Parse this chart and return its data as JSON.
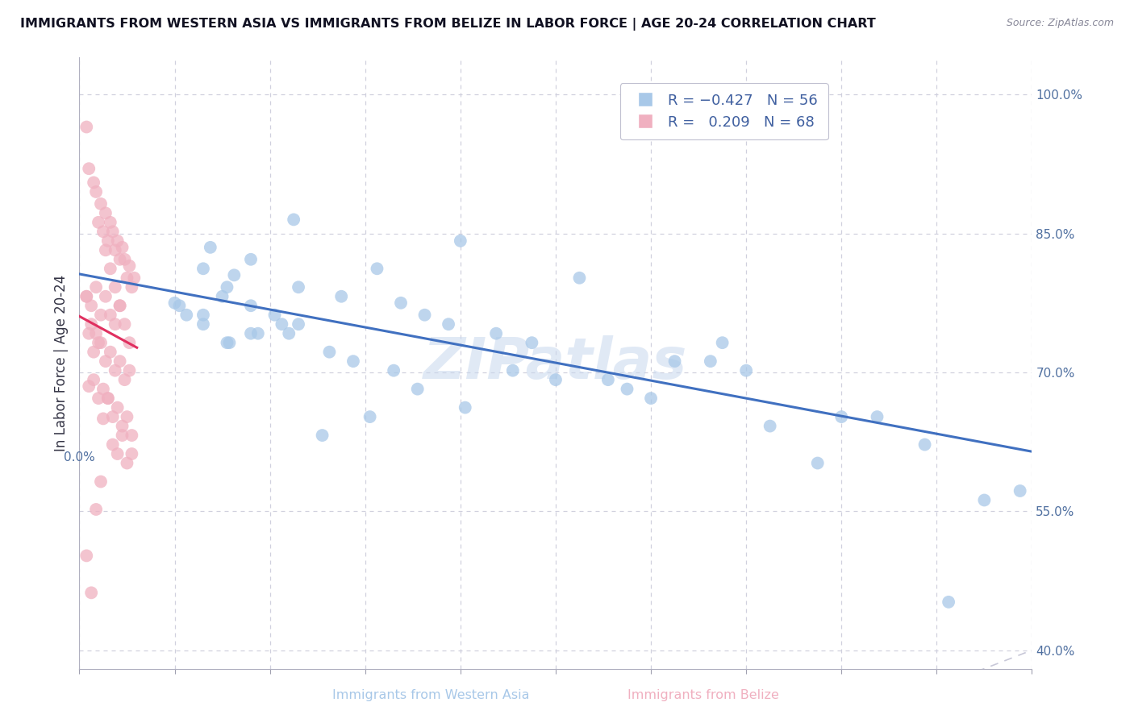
{
  "title": "IMMIGRANTS FROM WESTERN ASIA VS IMMIGRANTS FROM BELIZE IN LABOR FORCE | AGE 20-24 CORRELATION CHART",
  "source": "Source: ZipAtlas.com",
  "ylabel": "In Labor Force | Age 20-24",
  "right_yticks": [
    1.0,
    0.85,
    0.7,
    0.55,
    0.4
  ],
  "right_yticklabels": [
    "100.0%",
    "85.0%",
    "70.0%",
    "55.0%",
    "40.0%"
  ],
  "xlim": [
    0.0,
    0.4
  ],
  "ylim": [
    0.38,
    1.04
  ],
  "blue_color": "#a8c8e8",
  "pink_color": "#f0b0c0",
  "blue_line_color": "#4070c0",
  "pink_line_color": "#e03060",
  "diag_color": "#c8c8d8",
  "grid_color": "#d0d0de",
  "watermark": "ZIPatlas",
  "wa_x": [
    0.3,
    0.04,
    0.09,
    0.055,
    0.065,
    0.06,
    0.045,
    0.062,
    0.072,
    0.052,
    0.16,
    0.21,
    0.11,
    0.125,
    0.135,
    0.145,
    0.155,
    0.19,
    0.175,
    0.092,
    0.082,
    0.072,
    0.085,
    0.075,
    0.063,
    0.052,
    0.088,
    0.105,
    0.115,
    0.132,
    0.25,
    0.27,
    0.2,
    0.23,
    0.28,
    0.32,
    0.29,
    0.355,
    0.38,
    0.24,
    0.102,
    0.122,
    0.142,
    0.162,
    0.182,
    0.222,
    0.265,
    0.31,
    0.092,
    0.072,
    0.062,
    0.052,
    0.042,
    0.335,
    0.395,
    0.365
  ],
  "wa_y": [
    0.985,
    0.775,
    0.865,
    0.835,
    0.805,
    0.782,
    0.762,
    0.792,
    0.822,
    0.812,
    0.842,
    0.802,
    0.782,
    0.812,
    0.775,
    0.762,
    0.752,
    0.732,
    0.742,
    0.792,
    0.762,
    0.772,
    0.752,
    0.742,
    0.732,
    0.762,
    0.742,
    0.722,
    0.712,
    0.702,
    0.712,
    0.732,
    0.692,
    0.682,
    0.702,
    0.652,
    0.642,
    0.622,
    0.562,
    0.672,
    0.632,
    0.652,
    0.682,
    0.662,
    0.702,
    0.692,
    0.712,
    0.602,
    0.752,
    0.742,
    0.732,
    0.752,
    0.772,
    0.652,
    0.572,
    0.452
  ],
  "bz_x": [
    0.003,
    0.004,
    0.006,
    0.007,
    0.008,
    0.009,
    0.01,
    0.011,
    0.012,
    0.013,
    0.014,
    0.015,
    0.016,
    0.017,
    0.018,
    0.019,
    0.02,
    0.021,
    0.022,
    0.023,
    0.003,
    0.005,
    0.007,
    0.009,
    0.011,
    0.013,
    0.015,
    0.017,
    0.019,
    0.021,
    0.004,
    0.006,
    0.008,
    0.01,
    0.012,
    0.014,
    0.016,
    0.018,
    0.02,
    0.022,
    0.003,
    0.005,
    0.007,
    0.009,
    0.011,
    0.013,
    0.015,
    0.017,
    0.019,
    0.021,
    0.004,
    0.006,
    0.008,
    0.01,
    0.012,
    0.014,
    0.016,
    0.018,
    0.02,
    0.022,
    0.003,
    0.005,
    0.007,
    0.009,
    0.011,
    0.013,
    0.015,
    0.017
  ],
  "bz_y": [
    0.965,
    0.92,
    0.905,
    0.895,
    0.862,
    0.882,
    0.852,
    0.872,
    0.842,
    0.862,
    0.852,
    0.832,
    0.842,
    0.822,
    0.835,
    0.822,
    0.802,
    0.815,
    0.792,
    0.802,
    0.782,
    0.772,
    0.792,
    0.762,
    0.782,
    0.762,
    0.752,
    0.772,
    0.752,
    0.732,
    0.742,
    0.722,
    0.732,
    0.65,
    0.672,
    0.622,
    0.612,
    0.632,
    0.602,
    0.612,
    0.782,
    0.752,
    0.742,
    0.732,
    0.712,
    0.722,
    0.702,
    0.712,
    0.692,
    0.702,
    0.685,
    0.692,
    0.672,
    0.682,
    0.672,
    0.652,
    0.662,
    0.642,
    0.652,
    0.632,
    0.502,
    0.462,
    0.552,
    0.582,
    0.832,
    0.812,
    0.792,
    0.772
  ]
}
